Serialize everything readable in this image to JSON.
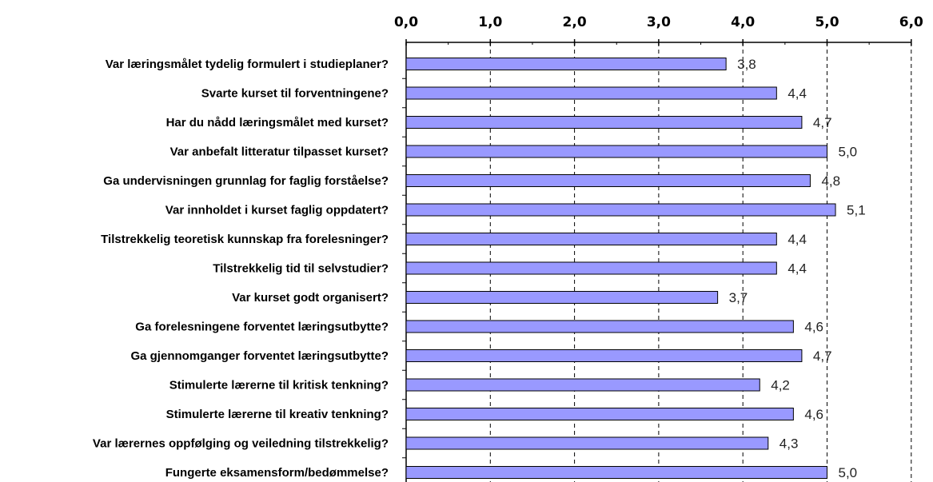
{
  "chart_data": {
    "type": "bar",
    "orientation": "horizontal",
    "title": "",
    "xlabel": "",
    "ylabel": "",
    "xlim": [
      0,
      6
    ],
    "tick_values": [
      0,
      1,
      2,
      3,
      4,
      5,
      6
    ],
    "tick_labels": [
      "0,0",
      "1,0",
      "2,0",
      "3,0",
      "4,0",
      "5,0",
      "6,0"
    ],
    "axis_position": "top",
    "grid": true,
    "grid_style": "dashed vertical",
    "categories": [
      "Var læringsmålet tydelig formulert i studieplaner?",
      "Svarte kurset til forventningene?",
      "Har du nådd læringsmålet med kurset?",
      "Var anbefalt litteratur tilpasset kurset?",
      "Ga undervisningen grunnlag for faglig forståelse?",
      "Var innholdet i kurset faglig oppdatert?",
      "Tilstrekkelig teoretisk kunnskap fra forelesninger?",
      "Tilstrekkelig tid til selvstudier?",
      "Var kurset godt organisert?",
      "Ga forelesningene forventet læringsutbytte?",
      "Ga gjennomganger forventet læringsutbytte?",
      "Stimulerte lærerne til kritisk tenkning?",
      "Stimulerte lærerne til kreativ tenkning?",
      "Var lærernes oppfølging og veiledning tilstrekkelig?",
      "Fungerte eksamensform/bedømmelse?"
    ],
    "values": [
      3.8,
      4.4,
      4.7,
      5.0,
      4.8,
      5.1,
      4.4,
      4.4,
      3.7,
      4.6,
      4.7,
      4.2,
      4.6,
      4.3,
      5.0
    ],
    "value_labels": [
      "3,8",
      "4,4",
      "4,7",
      "5,0",
      "4,8",
      "5,1",
      "4,4",
      "4,4",
      "3,7",
      "4,6",
      "4,7",
      "4,2",
      "4,6",
      "4,3",
      "5,0"
    ],
    "colors": {
      "bar_fill": "#9999ff",
      "bar_stroke": "#000000",
      "grid": "#000000",
      "axis": "#000000"
    }
  }
}
